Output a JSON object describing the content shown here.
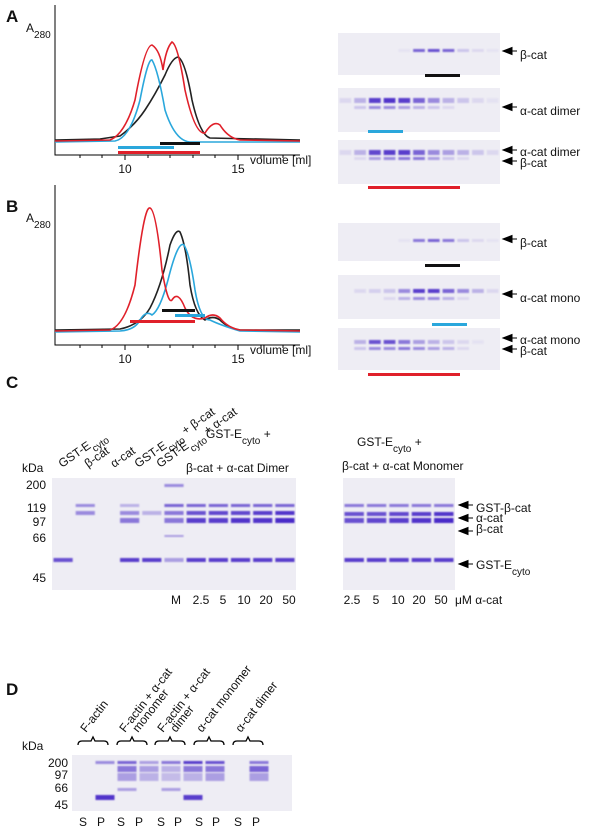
{
  "panel_a": {
    "letter": "A",
    "y_label": {
      "main": "A",
      "sub": "280"
    },
    "x_ticks": [
      "10",
      "15"
    ],
    "x_label": "volume [ml]",
    "gels": [
      {
        "labels": [
          "β-cat"
        ]
      },
      {
        "labels": [
          "α-cat  dimer"
        ]
      },
      {
        "labels": [
          "α-cat  dimer",
          "β-cat"
        ]
      }
    ]
  },
  "panel_b": {
    "letter": "B",
    "y_label": {
      "main": "A",
      "sub": "280"
    },
    "x_ticks": [
      "10",
      "15"
    ],
    "x_label": "volume [ml]",
    "gels": [
      {
        "labels": [
          "β-cat"
        ]
      },
      {
        "labels": [
          "α-cat  mono"
        ]
      },
      {
        "labels": [
          "α-cat  mono",
          "β-cat"
        ]
      }
    ]
  },
  "panel_c": {
    "letter": "C",
    "kda": "kDa",
    "markers": [
      "200",
      "119",
      "97",
      "66",
      "45"
    ],
    "lanes": [
      {
        "pre": "GST-E",
        "sub": "cyto"
      },
      {
        "pre": "β-cat"
      },
      {
        "pre": "α-cat"
      },
      {
        "pre": "GST-E",
        "sub": "cyto",
        "post": " + β-cat"
      },
      {
        "pre": "GST-E",
        "sub": "cyto",
        "post": " + α-cat"
      }
    ],
    "left_title": {
      "pre": "GST-E",
      "sub": "cyto",
      "post": " +"
    },
    "left_subtitle": "β-cat + α-cat Dimer",
    "marker_lane": "M",
    "left_conc": [
      "2.5",
      "5",
      "10",
      "20",
      "50"
    ],
    "right_title": {
      "pre": "GST-E",
      "sub": "cyto",
      "post": " +"
    },
    "right_subtitle": "β-cat + α-cat Monomer",
    "right_conc": [
      "2.5",
      "5",
      "10",
      "20",
      "50"
    ],
    "conc_unit": "μM α-cat",
    "band_labels": [
      {
        "pre": "GST-β-cat"
      },
      {
        "pre": "α-cat"
      },
      {
        "pre": "β-cat"
      },
      {
        "pre": "GST-E",
        "sub": "cyto"
      }
    ]
  },
  "panel_d": {
    "letter": "D",
    "kda": "kDa",
    "markers": [
      "200",
      "97",
      "66",
      "45"
    ],
    "groups": [
      [
        "F-actin"
      ],
      [
        "F-actin + α-cat",
        "monomer"
      ],
      [
        "F-actin + α-cat",
        "dimer"
      ],
      [
        "α-cat monomer"
      ],
      [
        "α-cat dimer"
      ]
    ],
    "lanes": [
      "S",
      "P",
      "S",
      "P",
      "S",
      "P",
      "S",
      "P",
      "S",
      "P"
    ]
  }
}
